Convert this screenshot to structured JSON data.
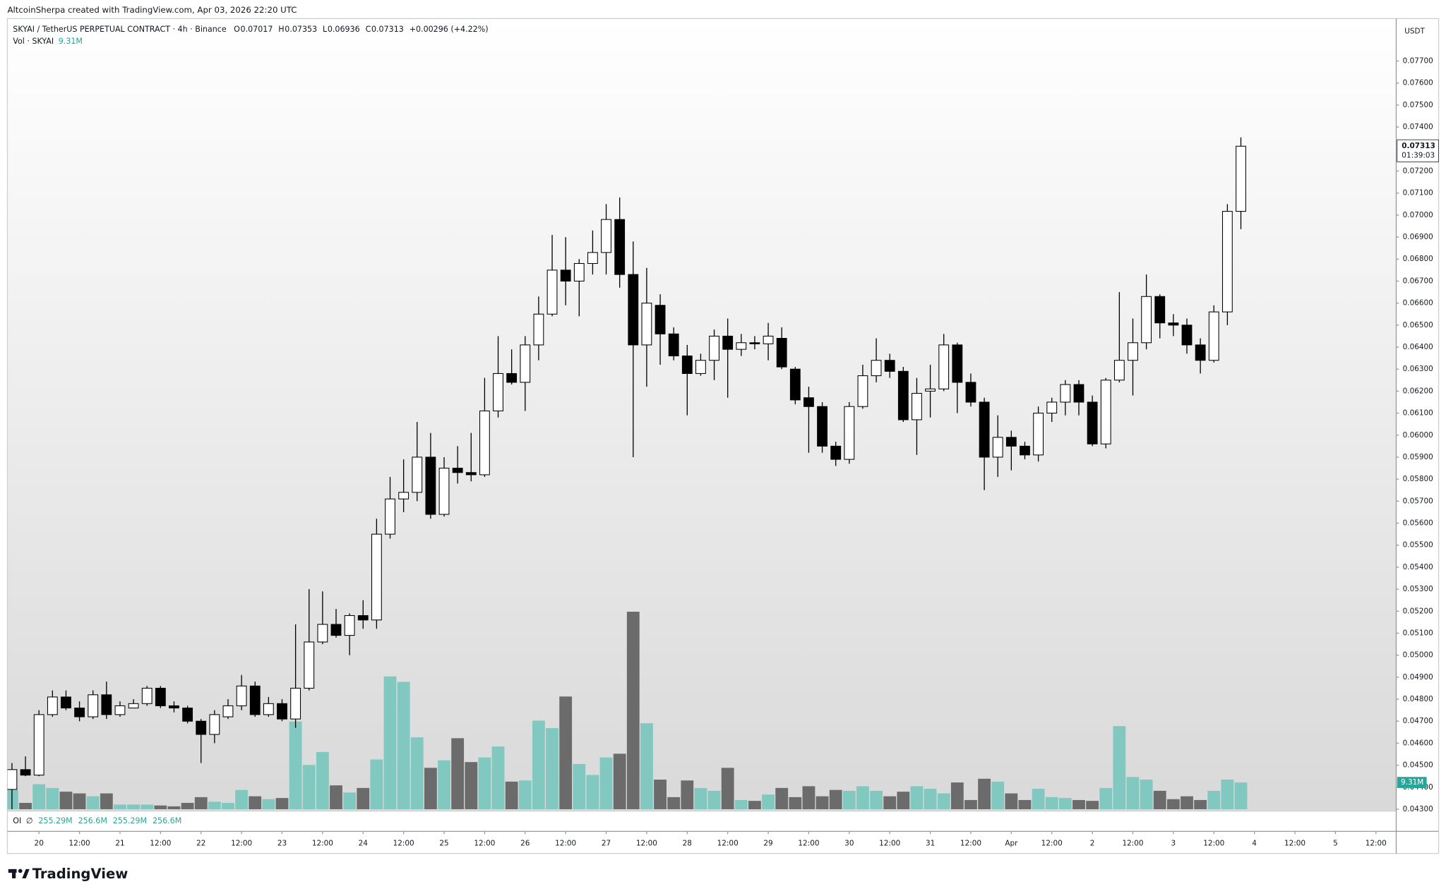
{
  "credit": "AltcoinSherpa created with TradingView.com, Apr 03, 2026 22:20 UTC",
  "watermark": "TradingView",
  "chart_data": {
    "type": "candlestick",
    "title": "SKYAI / TetherUS PERPETUAL CONTRACT · 4h · Binance",
    "ohlc_keys": [
      "O",
      "H",
      "L",
      "C"
    ],
    "change_label": "+0.00296 (+4.22%)",
    "open": [
      0.0439,
      0.0448,
      0.04455,
      0.0473,
      0.0481,
      0.0476,
      0.0472,
      0.0482,
      0.0473,
      0.0476,
      0.0478,
      0.0485,
      0.0477,
      0.0476,
      0.047,
      0.0464,
      0.0472,
      0.0477,
      0.0486,
      0.0473,
      0.0478,
      0.0471,
      0.0485,
      0.0506,
      0.0514,
      0.0509,
      0.0518,
      0.0516,
      0.0555,
      0.0571,
      0.0574,
      0.059,
      0.0564,
      0.0585,
      0.0583,
      0.0582,
      0.0611,
      0.0628,
      0.0624,
      0.0641,
      0.0655,
      0.0675,
      0.067,
      0.0678,
      0.0683,
      0.0698,
      0.0673,
      0.0641,
      0.0659,
      0.0646,
      0.0636,
      0.0628,
      0.0634,
      0.0645,
      0.0639,
      0.0642,
      0.06415,
      0.0644,
      0.063,
      0.0617,
      0.0613,
      0.0595,
      0.0589,
      0.0613,
      0.0627,
      0.0634,
      0.0629,
      0.0607,
      0.062,
      0.0621,
      0.0641,
      0.0624,
      0.0615,
      0.059,
      0.0599,
      0.0595,
      0.0591,
      0.061,
      0.0615,
      0.0623,
      0.0615,
      0.0596,
      0.0625,
      0.0634,
      0.0642,
      0.0663,
      0.0651,
      0.065,
      0.0641,
      0.0634,
      0.0656,
      0.07017
    ],
    "high": [
      0.0451,
      0.0454,
      0.0475,
      0.0484,
      0.0484,
      0.0479,
      0.0484,
      0.0488,
      0.0479,
      0.048,
      0.0486,
      0.0486,
      0.0479,
      0.0477,
      0.0471,
      0.0475,
      0.048,
      0.0491,
      0.0488,
      0.0481,
      0.048,
      0.0514,
      0.053,
      0.0529,
      0.0521,
      0.0519,
      0.0525,
      0.0562,
      0.0581,
      0.0589,
      0.0606,
      0.0601,
      0.059,
      0.0595,
      0.0601,
      0.0626,
      0.0645,
      0.0639,
      0.0645,
      0.0663,
      0.0691,
      0.069,
      0.068,
      0.0693,
      0.0705,
      0.0708,
      0.0688,
      0.0676,
      0.0664,
      0.0649,
      0.0641,
      0.0637,
      0.0648,
      0.0653,
      0.0646,
      0.0645,
      0.0651,
      0.0649,
      0.0631,
      0.0622,
      0.0615,
      0.0597,
      0.0615,
      0.0632,
      0.0644,
      0.0637,
      0.0631,
      0.0626,
      0.0632,
      0.0646,
      0.0642,
      0.0628,
      0.0617,
      0.0609,
      0.0602,
      0.0597,
      0.0613,
      0.0617,
      0.0625,
      0.0625,
      0.0618,
      0.0626,
      0.0665,
      0.0653,
      0.0673,
      0.0664,
      0.0655,
      0.0653,
      0.0644,
      0.0659,
      0.0705,
      0.07353
    ],
    "low": [
      0.043,
      0.0445,
      0.0445,
      0.0472,
      0.0475,
      0.047,
      0.0471,
      0.0471,
      0.0472,
      0.0476,
      0.0477,
      0.0476,
      0.0474,
      0.0469,
      0.0451,
      0.046,
      0.0471,
      0.0475,
      0.0472,
      0.0472,
      0.047,
      0.0467,
      0.0484,
      0.0505,
      0.0508,
      0.05,
      0.0512,
      0.0512,
      0.0553,
      0.0565,
      0.057,
      0.0562,
      0.0563,
      0.0578,
      0.0579,
      0.0581,
      0.0608,
      0.0623,
      0.0611,
      0.0634,
      0.0654,
      0.0659,
      0.0654,
      0.0673,
      0.0673,
      0.0667,
      0.059,
      0.0622,
      0.0632,
      0.0634,
      0.0609,
      0.0627,
      0.0625,
      0.0617,
      0.0636,
      0.0639,
      0.0634,
      0.063,
      0.0614,
      0.0592,
      0.0592,
      0.0586,
      0.0587,
      0.0612,
      0.0624,
      0.0626,
      0.0606,
      0.0591,
      0.0608,
      0.062,
      0.061,
      0.0613,
      0.0575,
      0.0581,
      0.0584,
      0.0589,
      0.0588,
      0.0606,
      0.0609,
      0.0609,
      0.0595,
      0.0594,
      0.0624,
      0.0618,
      0.0639,
      0.0644,
      0.0645,
      0.0637,
      0.0628,
      0.0633,
      0.065,
      0.06936
    ],
    "close": [
      0.0448,
      0.04455,
      0.0473,
      0.0481,
      0.0476,
      0.0472,
      0.0482,
      0.0473,
      0.0477,
      0.0478,
      0.0485,
      0.0477,
      0.0476,
      0.047,
      0.0464,
      0.0473,
      0.0477,
      0.0486,
      0.0473,
      0.0478,
      0.0471,
      0.0485,
      0.0506,
      0.0514,
      0.0509,
      0.0518,
      0.0516,
      0.0555,
      0.0571,
      0.0574,
      0.059,
      0.0564,
      0.0585,
      0.0583,
      0.0582,
      0.0611,
      0.0628,
      0.0624,
      0.0641,
      0.0655,
      0.0675,
      0.067,
      0.0678,
      0.0683,
      0.0698,
      0.0673,
      0.0641,
      0.066,
      0.0646,
      0.0636,
      0.0628,
      0.0634,
      0.0645,
      0.0639,
      0.0642,
      0.06415,
      0.0645,
      0.0631,
      0.0616,
      0.0613,
      0.0595,
      0.0589,
      0.0613,
      0.0627,
      0.0634,
      0.0629,
      0.0607,
      0.0619,
      0.0621,
      0.0641,
      0.0624,
      0.0615,
      0.059,
      0.0599,
      0.0595,
      0.0591,
      0.061,
      0.0615,
      0.0623,
      0.0615,
      0.0596,
      0.0625,
      0.0634,
      0.0642,
      0.0663,
      0.0651,
      0.065,
      0.0641,
      0.0634,
      0.0656,
      0.07017,
      0.07313
    ],
    "up_color": "#ffffff",
    "down_color": "#000000",
    "wick_color": "#000000",
    "volume": {
      "name": "Vol · SKYAI",
      "values": [
        6.7,
        2.2,
        8.7,
        7.4,
        6.1,
        5.5,
        4.5,
        5.5,
        1.6,
        1.6,
        1.6,
        1.3,
        1.0,
        2.2,
        4.2,
        2.6,
        2.2,
        6.7,
        4.5,
        3.5,
        3.9,
        30.5,
        15.4,
        19.9,
        8.3,
        5.8,
        7.4,
        17.3,
        46.2,
        44.3,
        25.0,
        14.4,
        17.0,
        24.7,
        16.4,
        18.0,
        21.8,
        9.6,
        10.0,
        30.8,
        28.2,
        39.2,
        15.7,
        11.9,
        18.0,
        19.3,
        68.7,
        29.9,
        10.3,
        4.2,
        10.0,
        7.4,
        6.4,
        14.4,
        3.2,
        2.9,
        5.1,
        7.4,
        4.2,
        8.0,
        4.5,
        6.7,
        6.4,
        8.0,
        6.4,
        4.5,
        6.1,
        8.0,
        7.1,
        5.5,
        9.3,
        3.2,
        10.6,
        9.6,
        5.5,
        3.2,
        7.1,
        4.2,
        3.9,
        3.2,
        2.9,
        7.4,
        28.9,
        11.2,
        10.3,
        6.4,
        3.5,
        4.5,
        3.2,
        6.4,
        10.3,
        9.31
      ],
      "last_label": "9.31M",
      "up_color": "#80c8c0",
      "down_color": "#6b6b6b",
      "ylim": [
        0,
        275
      ]
    },
    "ylim": [
      0.043,
      0.07893
    ],
    "yticks": [
      {
        "value": 0.043,
        "label": "0.04300"
      },
      {
        "value": 0.044,
        "label": "0.04400"
      },
      {
        "value": 0.045,
        "label": "0.04500"
      },
      {
        "value": 0.046,
        "label": "0.04600"
      },
      {
        "value": 0.047,
        "label": "0.04700"
      },
      {
        "value": 0.048,
        "label": "0.04800"
      },
      {
        "value": 0.049,
        "label": "0.04900"
      },
      {
        "value": 0.05,
        "label": "0.05000"
      },
      {
        "value": 0.051,
        "label": "0.05100"
      },
      {
        "value": 0.052,
        "label": "0.05200"
      },
      {
        "value": 0.053,
        "label": "0.05300"
      },
      {
        "value": 0.054,
        "label": "0.05400"
      },
      {
        "value": 0.055,
        "label": "0.05500"
      },
      {
        "value": 0.056,
        "label": "0.05600"
      },
      {
        "value": 0.057,
        "label": "0.05700"
      },
      {
        "value": 0.058,
        "label": "0.05800"
      },
      {
        "value": 0.059,
        "label": "0.05900"
      },
      {
        "value": 0.06,
        "label": "0.06000"
      },
      {
        "value": 0.061,
        "label": "0.06100"
      },
      {
        "value": 0.062,
        "label": "0.06200"
      },
      {
        "value": 0.063,
        "label": "0.06300"
      },
      {
        "value": 0.064,
        "label": "0.06400"
      },
      {
        "value": 0.065,
        "label": "0.06500"
      },
      {
        "value": 0.066,
        "label": "0.06600"
      },
      {
        "value": 0.067,
        "label": "0.06700"
      },
      {
        "value": 0.068,
        "label": "0.06800"
      },
      {
        "value": 0.069,
        "label": "0.06900"
      },
      {
        "value": 0.07,
        "label": "0.07000"
      },
      {
        "value": 0.071,
        "label": "0.07100"
      },
      {
        "value": 0.072,
        "label": "0.07200"
      },
      {
        "value": 0.073,
        "label": "0.07300"
      },
      {
        "value": 0.074,
        "label": "0.07400"
      },
      {
        "value": 0.075,
        "label": "0.07500"
      },
      {
        "value": 0.076,
        "label": "0.07600"
      },
      {
        "value": 0.077,
        "label": "0.07700"
      }
    ],
    "xlim": [
      -0.34,
      102.5
    ],
    "xticks": [
      {
        "value": 2,
        "label": "20"
      },
      {
        "value": 5,
        "label": "12:00"
      },
      {
        "value": 8,
        "label": "21"
      },
      {
        "value": 11,
        "label": "12:00"
      },
      {
        "value": 14,
        "label": "22"
      },
      {
        "value": 17,
        "label": "12:00"
      },
      {
        "value": 20,
        "label": "23"
      },
      {
        "value": 23,
        "label": "12:00"
      },
      {
        "value": 26,
        "label": "24"
      },
      {
        "value": 29,
        "label": "12:00"
      },
      {
        "value": 32,
        "label": "25"
      },
      {
        "value": 35,
        "label": "12:00"
      },
      {
        "value": 38,
        "label": "26"
      },
      {
        "value": 41,
        "label": "12:00"
      },
      {
        "value": 44,
        "label": "27"
      },
      {
        "value": 47,
        "label": "12:00"
      },
      {
        "value": 50,
        "label": "28"
      },
      {
        "value": 53,
        "label": "12:00"
      },
      {
        "value": 56,
        "label": "29"
      },
      {
        "value": 59,
        "label": "12:00"
      },
      {
        "value": 62,
        "label": "30"
      },
      {
        "value": 65,
        "label": "12:00"
      },
      {
        "value": 68,
        "label": "31"
      },
      {
        "value": 71,
        "label": "12:00"
      },
      {
        "value": 74,
        "label": "Apr"
      },
      {
        "value": 77,
        "label": "12:00"
      },
      {
        "value": 80,
        "label": "2"
      },
      {
        "value": 83,
        "label": "12:00"
      },
      {
        "value": 86,
        "label": "3"
      },
      {
        "value": 89,
        "label": "12:00"
      },
      {
        "value": 92,
        "label": "4"
      },
      {
        "value": 95,
        "label": "12:00"
      },
      {
        "value": 98,
        "label": "5"
      },
      {
        "value": 101,
        "label": "12:00"
      }
    ],
    "currency": "USDT",
    "countdown": "01:39:03",
    "grid": false,
    "oi": {
      "label": "OI",
      "symbol": "∅",
      "values": [
        "255.29M",
        "256.6M",
        "255.29M",
        "256.6M"
      ]
    }
  }
}
